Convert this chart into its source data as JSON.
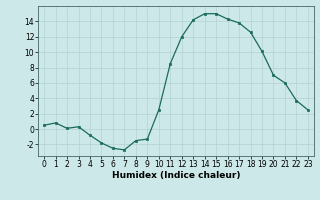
{
  "x": [
    0,
    1,
    2,
    3,
    4,
    5,
    6,
    7,
    8,
    9,
    10,
    11,
    12,
    13,
    14,
    15,
    16,
    17,
    18,
    19,
    20,
    21,
    22,
    23
  ],
  "y": [
    0.5,
    0.8,
    0.1,
    0.3,
    -0.8,
    -1.8,
    -2.5,
    -2.7,
    -1.5,
    -1.3,
    2.5,
    8.5,
    12.0,
    14.2,
    15.0,
    15.0,
    14.3,
    13.8,
    12.6,
    10.1,
    7.0,
    6.0,
    3.7,
    2.5
  ],
  "line_color": "#1a6b5a",
  "marker_color": "#1a6b5a",
  "bg_color": "#cde8e8",
  "grid_color": "#b8d4d4",
  "xlabel": "Humidex (Indice chaleur)",
  "ylabel": "",
  "xlim": [
    -0.5,
    23.5
  ],
  "ylim": [
    -3.5,
    16.0
  ],
  "yticks": [
    -2,
    0,
    2,
    4,
    6,
    8,
    10,
    12,
    14
  ],
  "xticks": [
    0,
    1,
    2,
    3,
    4,
    5,
    6,
    7,
    8,
    9,
    10,
    11,
    12,
    13,
    14,
    15,
    16,
    17,
    18,
    19,
    20,
    21,
    22,
    23
  ],
  "tick_fontsize": 5.5,
  "label_fontsize": 6.5
}
